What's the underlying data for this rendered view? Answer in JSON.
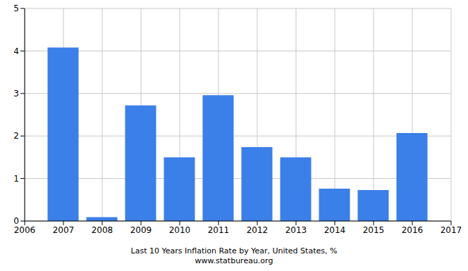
{
  "chart_data": {
    "type": "bar",
    "title": "Last 10 Years Inflation Rate by Year, United States, %",
    "subtitle": "www.statbureau.org",
    "x": [
      2007,
      2008,
      2009,
      2010,
      2011,
      2012,
      2013,
      2014,
      2015,
      2016
    ],
    "values": [
      4.08,
      0.09,
      2.72,
      1.5,
      2.96,
      1.74,
      1.5,
      0.76,
      0.73,
      2.07
    ],
    "color": "#3b7fe8",
    "xlim": [
      2006,
      2017
    ],
    "xticks": [
      2006,
      2007,
      2008,
      2009,
      2010,
      2011,
      2012,
      2013,
      2014,
      2015,
      2016,
      2017
    ],
    "ylim": [
      0,
      5
    ],
    "yticks": [
      0,
      1,
      2,
      3,
      4,
      5
    ],
    "grid": true
  }
}
